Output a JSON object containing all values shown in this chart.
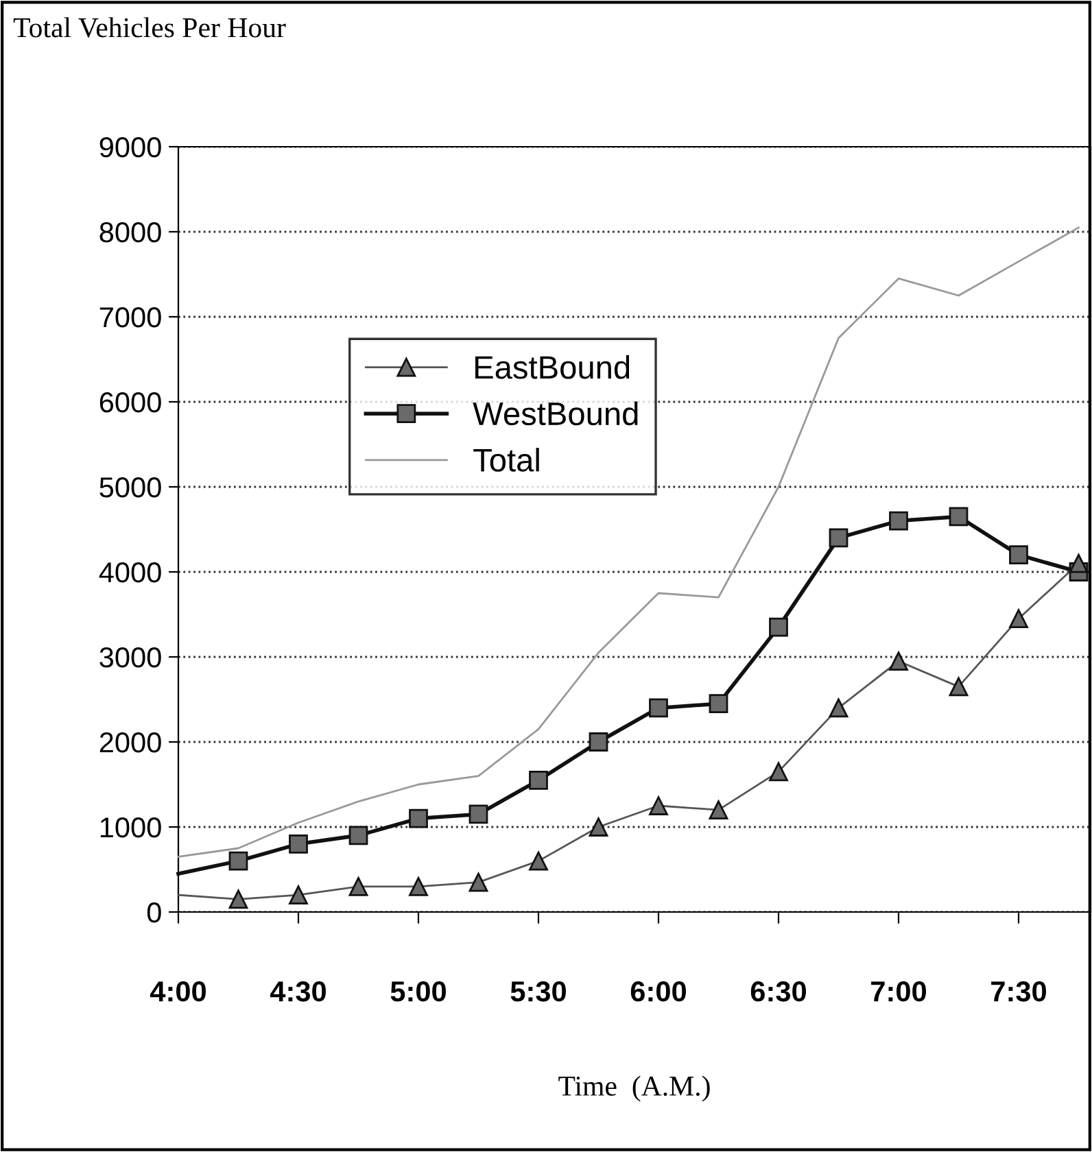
{
  "chart_data": {
    "type": "line",
    "title": "Total Vehicles Per Hour",
    "xlabel": "Time  (A.M.)",
    "x": [
      4.0,
      4.25,
      4.5,
      4.75,
      5.0,
      5.25,
      5.5,
      5.75,
      6.0,
      6.25,
      6.5,
      6.75,
      7.0,
      7.25,
      7.5,
      7.75
    ],
    "series": [
      {
        "name": "EastBound",
        "color": "#555555",
        "marker": "triangle",
        "values": [
          200,
          150,
          200,
          300,
          300,
          350,
          600,
          1000,
          1250,
          1200,
          1650,
          2400,
          2950,
          2650,
          3450,
          4100
        ]
      },
      {
        "name": "WestBound",
        "color": "#111111",
        "marker": "square",
        "values": [
          450,
          600,
          800,
          900,
          1100,
          1150,
          1550,
          2000,
          2400,
          2450,
          3350,
          4400,
          4600,
          4650,
          4200,
          4000
        ]
      },
      {
        "name": "Total",
        "color": "#999999",
        "marker": "none",
        "values": [
          650,
          750,
          1050,
          1300,
          1500,
          1600,
          2150,
          3050,
          3750,
          3700,
          5000,
          6750,
          7450,
          7250,
          7650,
          8050
        ]
      }
    ],
    "xlim": [
      4.0,
      7.8
    ],
    "xticks": [
      {
        "value": 4.0,
        "label": "4:00"
      },
      {
        "value": 4.5,
        "label": "4:30"
      },
      {
        "value": 5.0,
        "label": "5:00"
      },
      {
        "value": 5.5,
        "label": "5:30"
      },
      {
        "value": 6.0,
        "label": "6:00"
      },
      {
        "value": 6.5,
        "label": "6:30"
      },
      {
        "value": 7.0,
        "label": "7:00"
      },
      {
        "value": 7.5,
        "label": "7:30"
      }
    ],
    "ylim": [
      0,
      9000
    ],
    "yticks": [
      0,
      1000,
      2000,
      3000,
      4000,
      5000,
      6000,
      7000,
      8000,
      9000
    ],
    "grid": "y",
    "legend": "top left",
    "line_style": "solid"
  }
}
